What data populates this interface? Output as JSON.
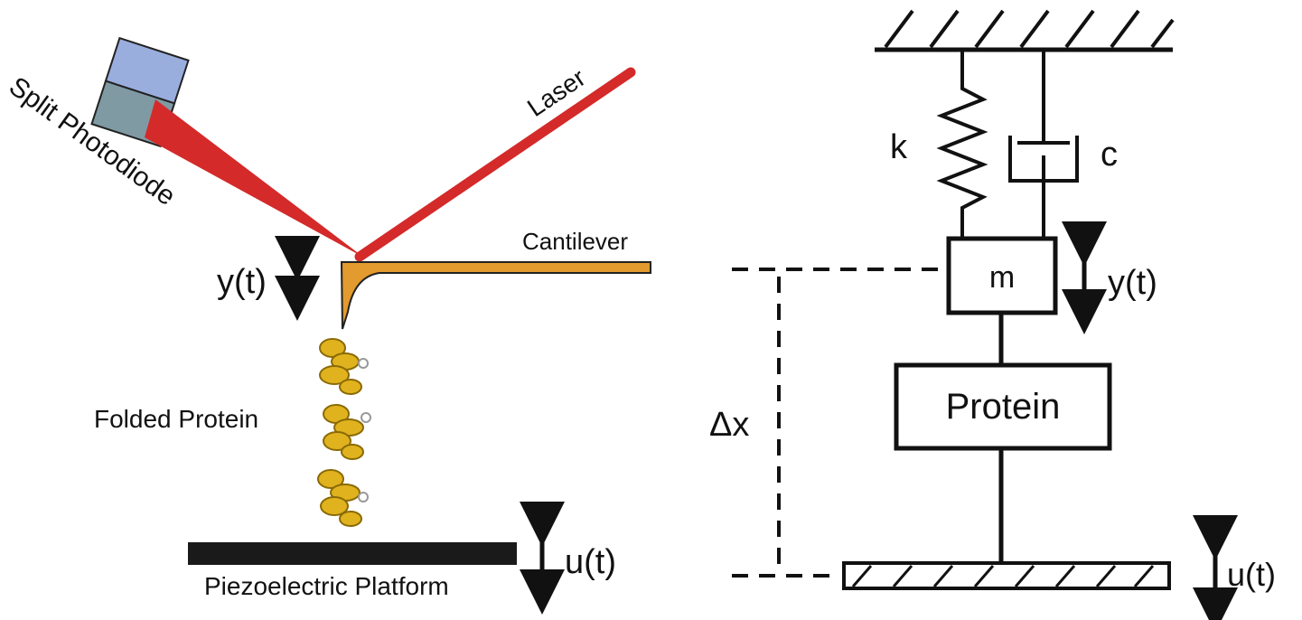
{
  "left_panel": {
    "photodiode_label": "Split Photodiode",
    "laser_label": "Laser",
    "cantilever_label": "Cantilever",
    "deflection_label": "y(t)",
    "protein_label": "Folded Protein",
    "platform_label": "Piezoelectric Platform",
    "actuation_label": "u(t)"
  },
  "right_panel": {
    "spring_label": "k",
    "damper_label": "c",
    "mass_label": "m",
    "mass_motion_label": "y(t)",
    "protein_box_label": "Protein",
    "extension_label": "Δx",
    "base_motion_label": "u(t)"
  },
  "colors": {
    "laser": "#d42a2a",
    "cantilever": "#e39a2e",
    "protein": "#e0b21e",
    "photodiode_top": "#9aaede",
    "photodiode_bottom": "#7f9aa3",
    "platform": "#1a1a1a"
  }
}
